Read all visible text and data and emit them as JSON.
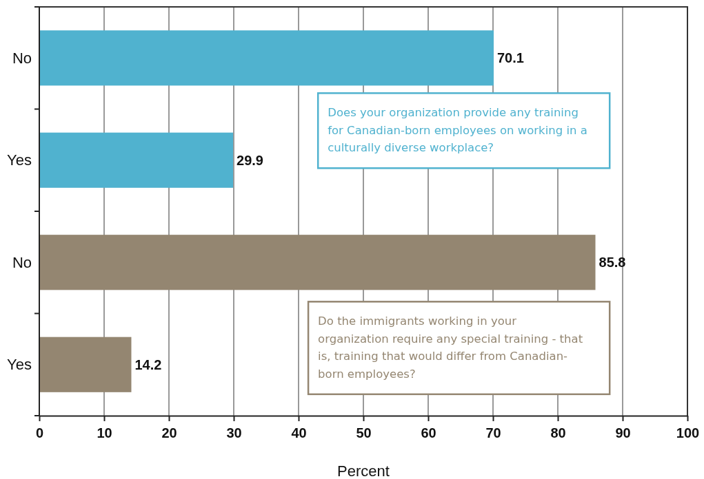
{
  "chart_data": {
    "type": "bar",
    "orientation": "horizontal",
    "categories": [
      "No",
      "Yes",
      "No",
      "Yes"
    ],
    "values": [
      70.1,
      29.9,
      85.8,
      14.2
    ],
    "colors": [
      "#50b2cf",
      "#50b2cf",
      "#948671",
      "#948671"
    ],
    "xlabel": "Percent",
    "xlim": [
      0,
      100
    ],
    "xticks": [
      0,
      10,
      20,
      30,
      40,
      50,
      60,
      70,
      80,
      90,
      100
    ],
    "grid": "x",
    "data_labels": true,
    "annotations": [
      "Does your organization provide any training for Canadian-born employees on working in a culturally diverse workplace?",
      "Do the immigrants working in your organization require any special training - that is, training that would differ from Canadian-born employees?"
    ]
  }
}
